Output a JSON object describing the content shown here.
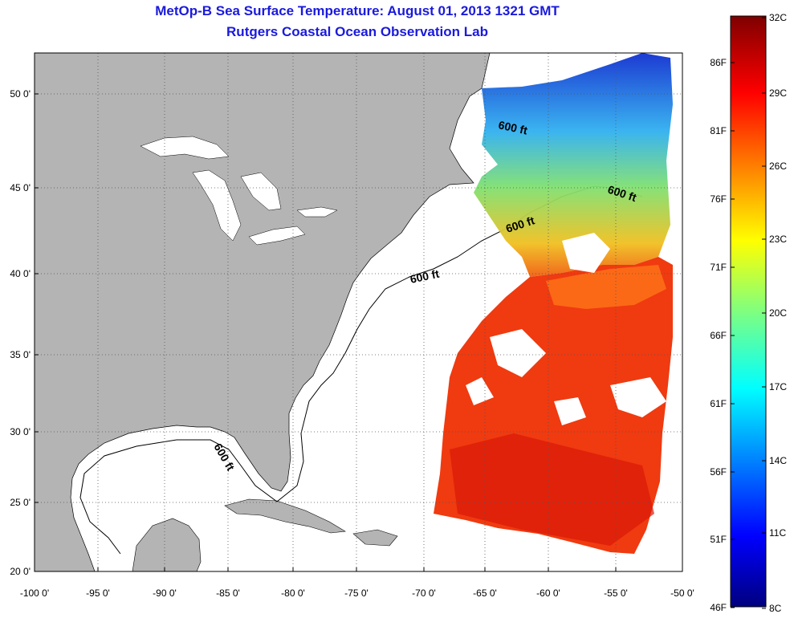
{
  "header": {
    "title": "MetOp-B Sea Surface Temperature:  August 01, 2013 1321 GMT",
    "subtitle": "Rutgers Coastal Ocean Observation Lab"
  },
  "map": {
    "lon_ticks": [
      "-100 0'",
      "-95 0'",
      "-90 0'",
      "-85 0'",
      "-80 0'",
      "-75 0'",
      "-70 0'",
      "-65 0'",
      "-60 0'",
      "-55 0'",
      "-50 0'"
    ],
    "lat_ticks": [
      "50 0'",
      "45 0'",
      "40 0'",
      "35 0'",
      "30 0'",
      "25 0'",
      "20 0'"
    ],
    "contour_labels": [
      "600 ft",
      "600 ft",
      "600 ft",
      "600 ft",
      "600 ft"
    ],
    "colors": {
      "land": "#b4b4b4",
      "ocean": "#ffffff"
    }
  },
  "colorbar": {
    "fahrenheit_labels": [
      "86F",
      "81F",
      "76F",
      "71F",
      "66F",
      "61F",
      "56F",
      "51F",
      "46F"
    ],
    "celsius_labels": [
      "32C",
      "29C",
      "26C",
      "23C",
      "20C",
      "17C",
      "14C",
      "11C",
      "8C"
    ],
    "range_celsius": [
      8,
      32
    ]
  }
}
